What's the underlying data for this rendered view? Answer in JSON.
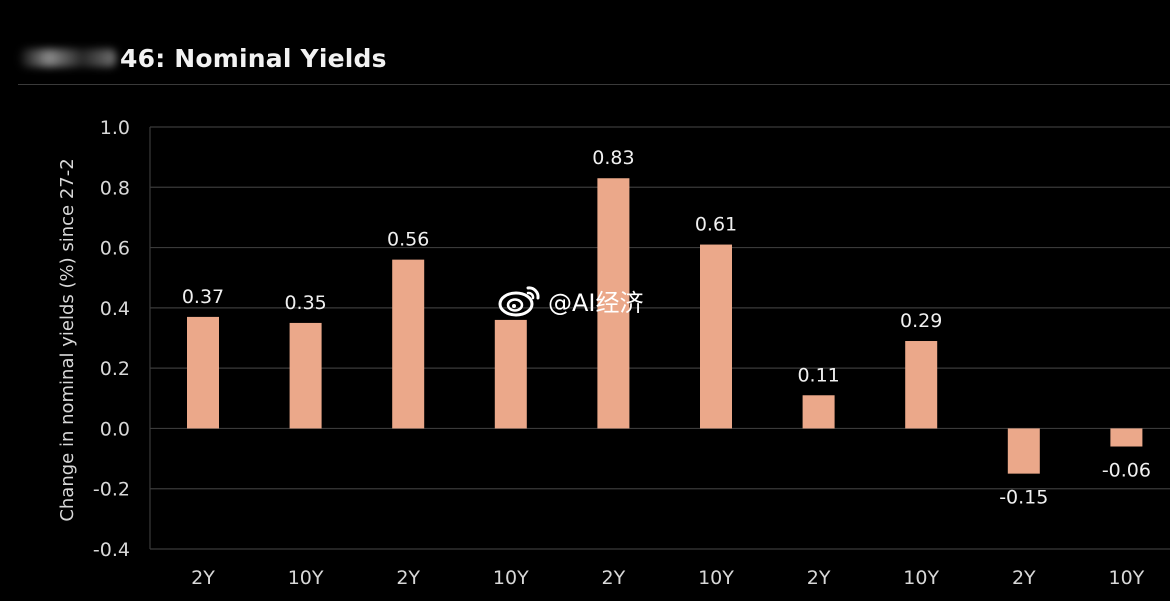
{
  "title": "46: Nominal Yields",
  "watermark": {
    "text": "@AI经济",
    "icon": "weibo-icon"
  },
  "colors": {
    "background": "#000000",
    "bar": "#eba88a",
    "gridline": "#3a3a3a",
    "text": "#f0f0f0",
    "axis_text": "#d8d8d8"
  },
  "chart_data": {
    "type": "bar",
    "title": "46: Nominal Yields",
    "xlabel": "",
    "ylabel": "Change in nominal yields (%) since 27-2",
    "ylim": [
      -0.4,
      1.0
    ],
    "yticks": [
      "1.0",
      "0.8",
      "0.6",
      "0.4",
      "0.2",
      "0.0",
      "-0.2",
      "-0.4"
    ],
    "grid": true,
    "categories": [
      "2Y",
      "10Y",
      "2Y",
      "10Y",
      "2Y",
      "10Y",
      "2Y",
      "10Y",
      "2Y",
      "10Y"
    ],
    "values": [
      0.37,
      0.35,
      0.56,
      0.36,
      0.83,
      0.61,
      0.11,
      0.29,
      -0.15,
      -0.06
    ],
    "data_labels": [
      "0.37",
      "0.35",
      "0.56",
      "",
      "0.83",
      "0.61",
      "0.11",
      "0.29",
      "-0.15",
      "-0.06"
    ]
  }
}
